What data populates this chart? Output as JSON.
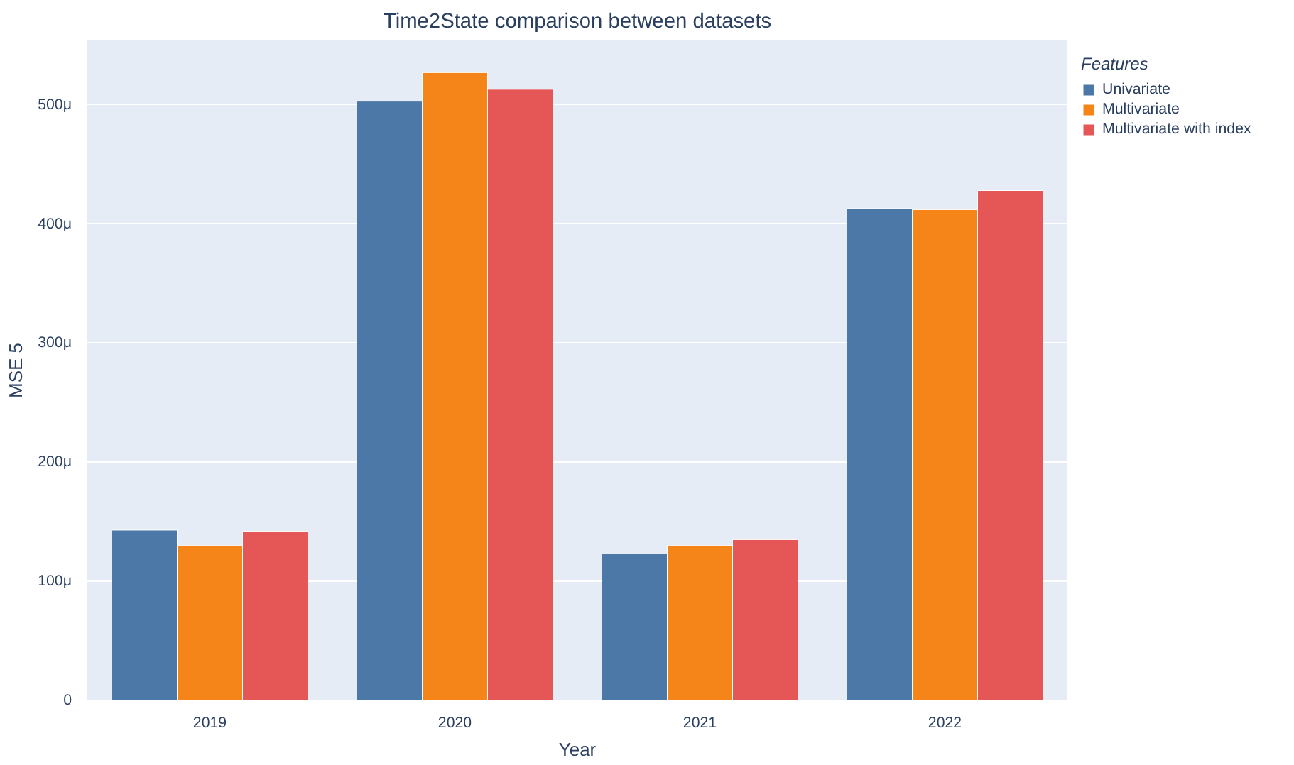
{
  "chart_data": {
    "type": "bar",
    "title": "Time2State comparison between datasets",
    "xlabel": "Year",
    "ylabel": "MSE 5",
    "legend_title": "Features",
    "categories": [
      "2019",
      "2020",
      "2021",
      "2022"
    ],
    "series": [
      {
        "name": "Univariate",
        "color": "#4c78a8",
        "values": [
          143,
          503,
          123,
          413
        ]
      },
      {
        "name": "Multivariate",
        "color": "#f58518",
        "values": [
          130,
          527,
          130,
          412
        ]
      },
      {
        "name": "Multivariate with index",
        "color": "#e45756",
        "values": [
          142,
          513,
          135,
          428
        ]
      }
    ],
    "ylim": [
      0,
      554
    ],
    "yticks": [
      0,
      {
        "value": 100,
        "label": "100μ"
      },
      {
        "value": 200,
        "label": "200μ"
      },
      {
        "value": 300,
        "label": "300μ"
      },
      {
        "value": 400,
        "label": "400μ"
      },
      {
        "value": 500,
        "label": "500μ"
      }
    ],
    "grid": "y",
    "legend": "top right"
  }
}
